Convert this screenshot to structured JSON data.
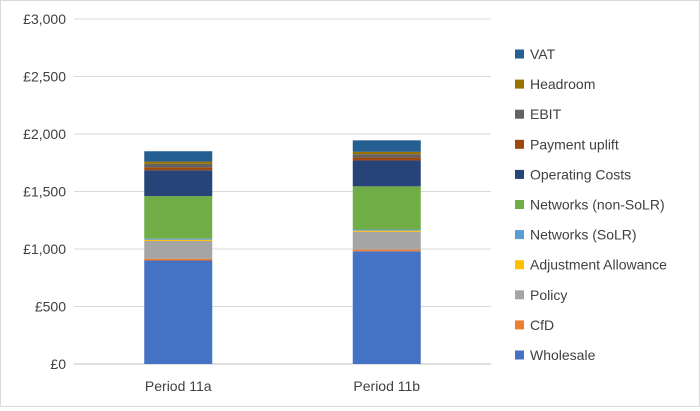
{
  "chart_data": {
    "type": "bar",
    "stacked": true,
    "title": "",
    "xlabel": "",
    "ylabel": "",
    "categories": [
      "Period 11a",
      "Period 11b"
    ],
    "ylim": [
      0,
      3000
    ],
    "yticks": [
      0,
      500,
      1000,
      1500,
      2000,
      2500,
      3000
    ],
    "ytick_labels": [
      "£0",
      "£500",
      "£1,000",
      "£1,500",
      "£2,000",
      "£2,500",
      "£3,000"
    ],
    "grid": true,
    "legend_position": "right",
    "series": [
      {
        "name": "Wholesale",
        "color": "#4472c4",
        "values": [
          900,
          980
        ]
      },
      {
        "name": "CfD",
        "color": "#ed7d31",
        "values": [
          15,
          15
        ]
      },
      {
        "name": "Policy",
        "color": "#a5a5a5",
        "values": [
          155,
          155
        ]
      },
      {
        "name": "Adjustment Allowance",
        "color": "#ffc000",
        "values": [
          10,
          10
        ]
      },
      {
        "name": "Networks (SoLR)",
        "color": "#5b9bd5",
        "values": [
          10,
          10
        ]
      },
      {
        "name": "Networks (non-SoLR)",
        "color": "#70ad47",
        "values": [
          370,
          375
        ]
      },
      {
        "name": "Operating Costs",
        "color": "#264478",
        "values": [
          225,
          225
        ]
      },
      {
        "name": "Payment uplift",
        "color": "#9e480e",
        "values": [
          25,
          25
        ]
      },
      {
        "name": "EBIT",
        "color": "#636363",
        "values": [
          30,
          30
        ]
      },
      {
        "name": "Headroom",
        "color": "#997300",
        "values": [
          20,
          20
        ]
      },
      {
        "name": "VAT",
        "color": "#255e91",
        "values": [
          90,
          100
        ]
      }
    ]
  }
}
